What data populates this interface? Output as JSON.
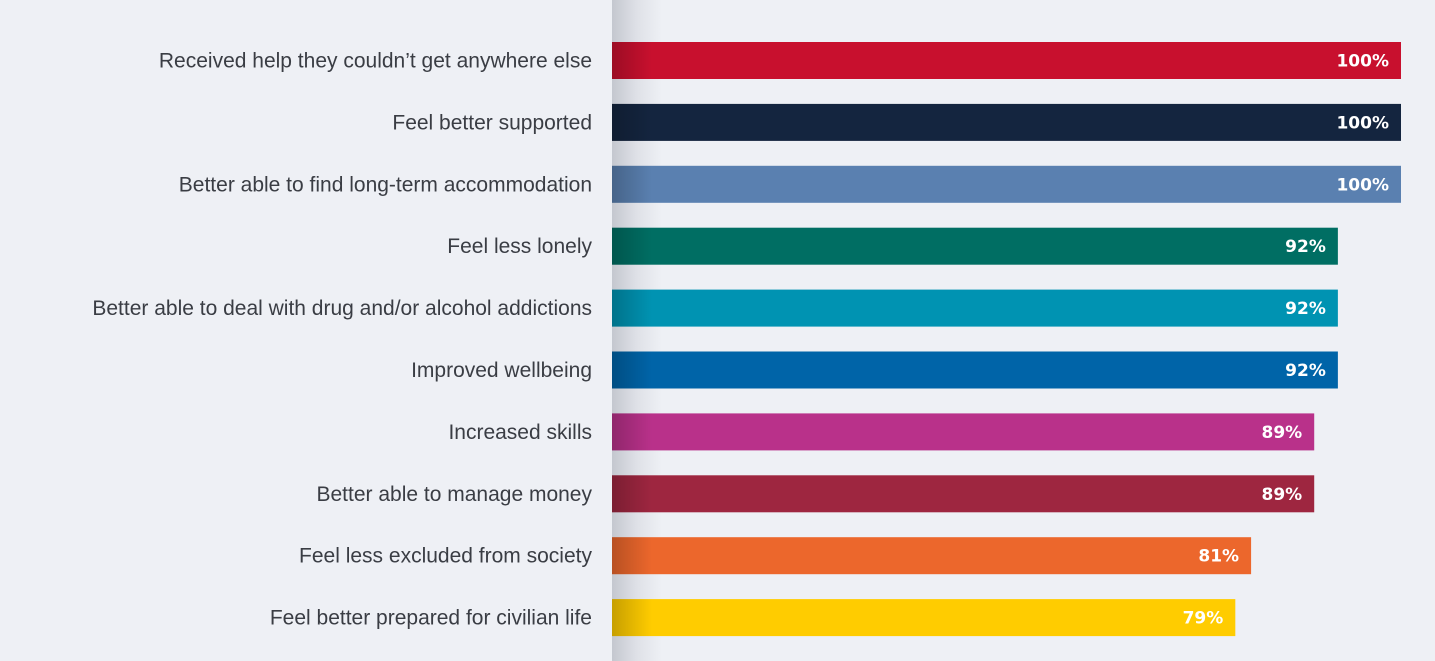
{
  "chart_data": {
    "type": "bar",
    "orientation": "horizontal",
    "categories": [
      "Received help they couldn’t get anywhere else",
      "Feel better supported",
      "Better able to find long-term accommodation",
      "Feel less lonely",
      "Better able to deal with drug and/or alcohol addictions",
      "Improved wellbeing",
      "Increased skills",
      "Better able to manage money",
      "Feel less excluded from society",
      "Feel better prepared for civilian life"
    ],
    "values": [
      100,
      100,
      100,
      92,
      92,
      92,
      89,
      89,
      81,
      79
    ],
    "value_labels": [
      "100%",
      "100%",
      "100%",
      "92%",
      "92%",
      "92%",
      "89%",
      "89%",
      "81%",
      "79%"
    ],
    "colors": [
      "#c8102e",
      "#14253f",
      "#5a80b0",
      "#006e63",
      "#0093b2",
      "#0064a8",
      "#b9318a",
      "#9e2640",
      "#ec672c",
      "#ffcc00"
    ],
    "xlim": [
      0,
      100
    ],
    "title": "",
    "xlabel": "",
    "ylabel": "",
    "grid": false,
    "legend": "none"
  }
}
